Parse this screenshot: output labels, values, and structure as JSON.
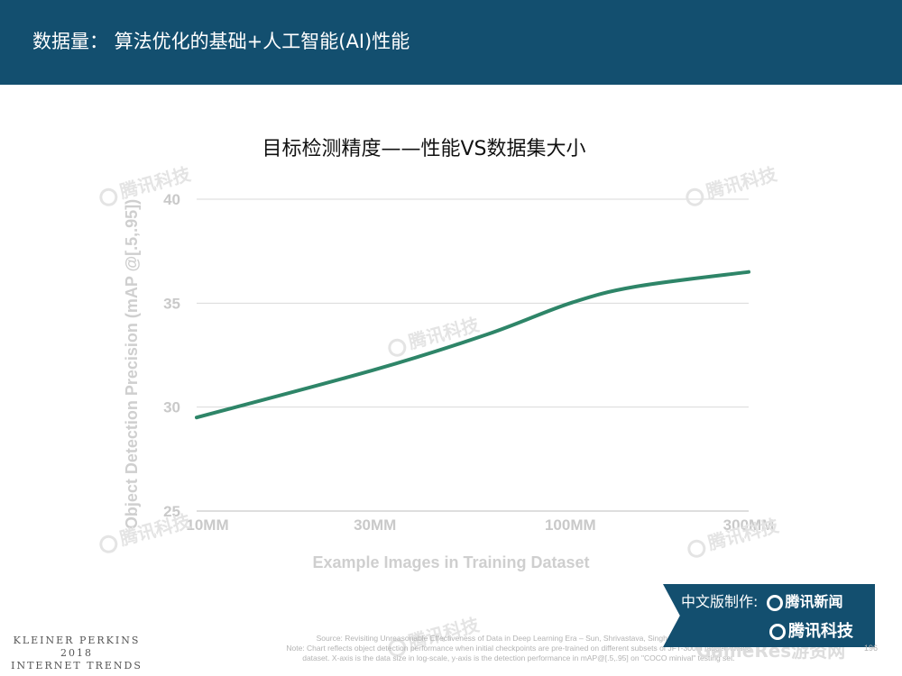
{
  "header": {
    "title": "数据量： 算法优化的基础+人工智能(AI)性能",
    "background_color": "#134f6f"
  },
  "watermark": {
    "text": "腾讯科技",
    "icon": "tencent-logo-icon"
  },
  "chart_data": {
    "type": "line",
    "title": "目标检测精度——性能VS数据集大小",
    "xlabel": "Example Images in Training Dataset",
    "ylabel": "Object Detection Precision (mAP @[.5,.95])",
    "x_scale": "log",
    "x_ticks": [
      {
        "label": "10MM",
        "value": 10
      },
      {
        "label": "30MM",
        "value": 30
      },
      {
        "label": "100MM",
        "value": 100
      },
      {
        "label": "300MM",
        "value": 300
      }
    ],
    "y_ticks": [
      25,
      30,
      35,
      40
    ],
    "xlim": [
      10,
      300
    ],
    "ylim": [
      25,
      40
    ],
    "grid": true,
    "line_color": "#2e8568",
    "series": [
      {
        "x": [
          10,
          30,
          60,
          100,
          150,
          300
        ],
        "values": [
          29.5,
          31.8,
          33.5,
          35.0,
          35.8,
          36.5
        ]
      }
    ]
  },
  "footer": {
    "brand_lines": [
      "KLEINER PERKINS",
      "2018",
      "INTERNET TRENDS"
    ],
    "source_lines": [
      "Source: Revisiting Unreasonable Effectiveness of Data in Deep Learning Era – Sun, Shrivastava, Singh, & Gupta, 2017",
      "Note: Chart reflects object detection performance when initial checkpoints are pre-trained on different subsets of JFT-300M tagged image",
      "dataset. X-axis is the data size in log-scale, y-axis is the detection performance in mAP@[.5,.95] on \"COCO minival\" testing set."
    ],
    "page_number": "196",
    "credit_label": "中文版制作:",
    "credit_org1": "腾讯新闻",
    "credit_org2": "腾讯科技",
    "corner_watermark": "GameRes游资网"
  }
}
